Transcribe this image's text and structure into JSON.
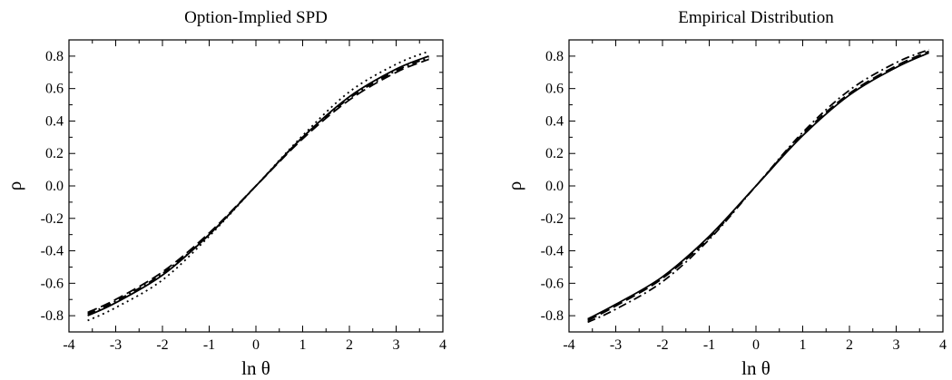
{
  "chart_data": [
    {
      "type": "line",
      "title": "Option-Implied SPD",
      "xlabel": "ln θ",
      "ylabel": "ρ",
      "xlim": [
        -4,
        4
      ],
      "ylim": [
        -0.9,
        0.9
      ],
      "xticks": [
        -4,
        -3,
        -2,
        -1,
        0,
        1,
        2,
        3,
        4
      ],
      "yticks": [
        "-0.8",
        "-0.6",
        "-0.4",
        "-0.2",
        "0.0",
        "0.2",
        "0.4",
        "0.6",
        "0.8"
      ],
      "grid": false,
      "legend": "none",
      "series": [
        {
          "style": "solid",
          "x": [
            -3.6,
            -3,
            -2,
            -1,
            0,
            1,
            2,
            3,
            3.7
          ],
          "values": [
            -0.8,
            -0.72,
            -0.55,
            -0.3,
            0.0,
            0.3,
            0.55,
            0.72,
            0.8
          ]
        },
        {
          "style": "dashed",
          "x": [
            -3.6,
            -3,
            -2,
            -1,
            0,
            1,
            2,
            3,
            3.7
          ],
          "values": [
            -0.78,
            -0.7,
            -0.53,
            -0.29,
            0.0,
            0.29,
            0.53,
            0.7,
            0.78
          ]
        },
        {
          "style": "dotted",
          "x": [
            -3.6,
            -3,
            -2,
            -1,
            0,
            1,
            2,
            3,
            3.7
          ],
          "values": [
            -0.83,
            -0.75,
            -0.58,
            -0.31,
            0.0,
            0.31,
            0.58,
            0.75,
            0.83
          ]
        },
        {
          "style": "dash-dot",
          "x": [
            -3.6,
            -3,
            -2,
            -1,
            0,
            1,
            2,
            3,
            3.7
          ],
          "values": [
            -0.79,
            -0.71,
            -0.54,
            -0.3,
            0.0,
            0.3,
            0.54,
            0.71,
            0.79
          ]
        }
      ]
    },
    {
      "type": "line",
      "title": "Empirical Distribution",
      "xlabel": "ln θ",
      "ylabel": "ρ",
      "xlim": [
        -4,
        4
      ],
      "ylim": [
        -0.9,
        0.9
      ],
      "xticks": [
        -4,
        -3,
        -2,
        -1,
        0,
        1,
        2,
        3,
        4
      ],
      "yticks": [
        "-0.8",
        "-0.6",
        "-0.4",
        "-0.2",
        "0.0",
        "0.2",
        "0.4",
        "0.6",
        "0.8"
      ],
      "grid": false,
      "legend": "none",
      "series": [
        {
          "style": "solid",
          "x": [
            -3.6,
            -3,
            -2,
            -1,
            0,
            1,
            2,
            3,
            3.7
          ],
          "values": [
            -0.82,
            -0.73,
            -0.56,
            -0.31,
            0.0,
            0.31,
            0.56,
            0.73,
            0.82
          ]
        },
        {
          "style": "dashed",
          "x": [
            -3.6,
            -3,
            -2,
            -1,
            0,
            1,
            2,
            3,
            3.7
          ],
          "values": [
            -0.83,
            -0.74,
            -0.57,
            -0.32,
            0.0,
            0.32,
            0.57,
            0.74,
            0.83
          ]
        },
        {
          "style": "dash-dot",
          "x": [
            -3.6,
            -3,
            -2,
            -1,
            0,
            1,
            2,
            3,
            3.7
          ],
          "values": [
            -0.84,
            -0.76,
            -0.59,
            -0.33,
            0.0,
            0.33,
            0.59,
            0.76,
            0.84
          ]
        }
      ]
    }
  ]
}
